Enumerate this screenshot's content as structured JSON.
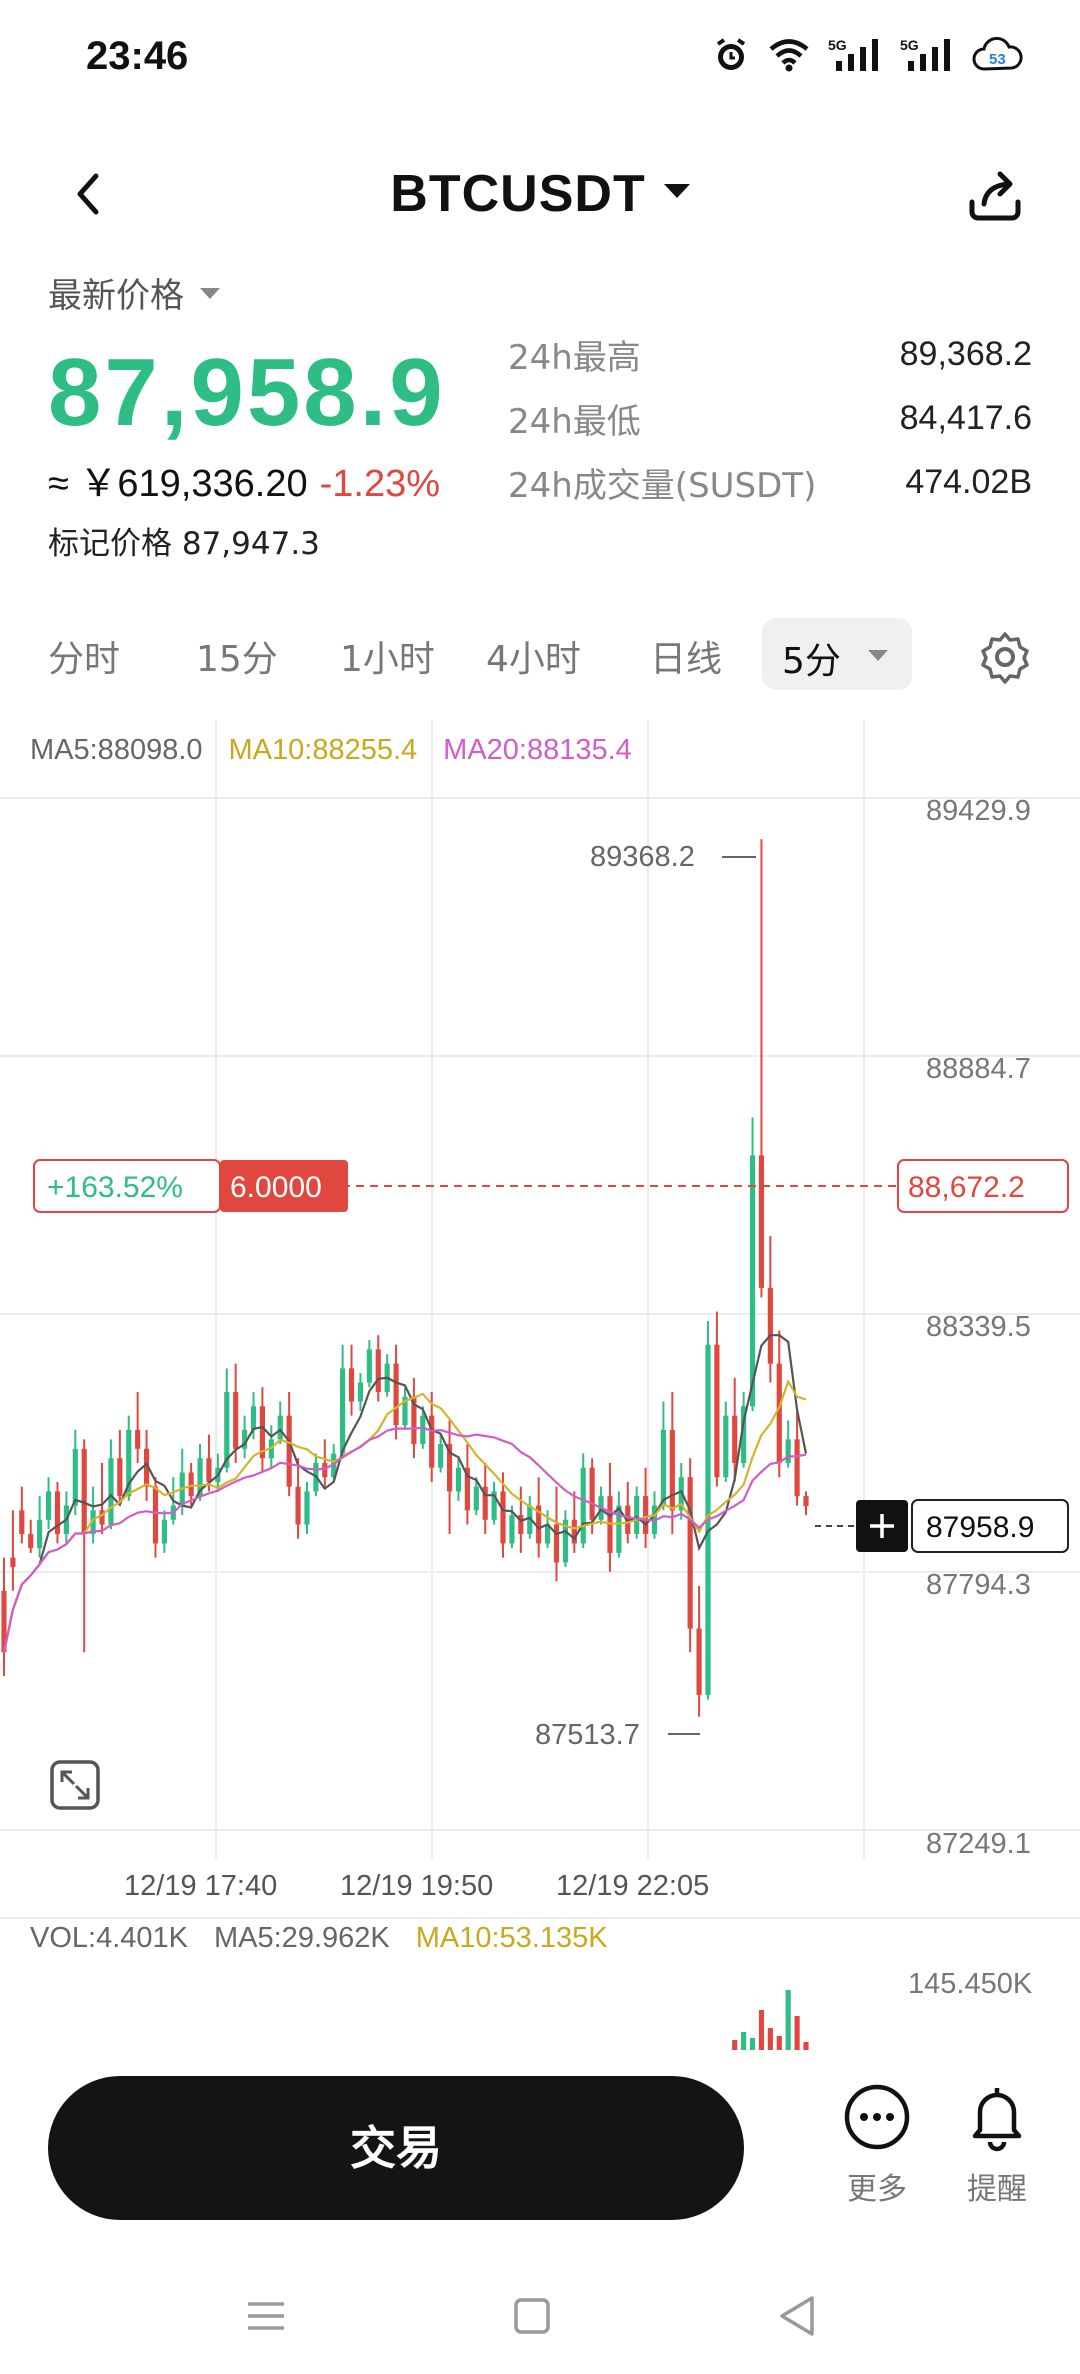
{
  "status_bar": {
    "time": "23:46",
    "icons": [
      "alarm-icon",
      "wifi-icon",
      "5g-signal-icon",
      "5g-signal-icon",
      "cloud-icon"
    ],
    "net_label_1": "5G",
    "net_label_2": "5G",
    "cloud_badge": "53"
  },
  "header": {
    "pair": "BTCUSDT"
  },
  "ticker": {
    "price_label": "最新价格",
    "last_price": "87,958.9",
    "cny_value": "≈ ￥619,336.20",
    "change_pct": "-1.23%",
    "mark_price": "标记价格 87,947.3",
    "stats": [
      {
        "label": "24h最高",
        "value": "89,368.2"
      },
      {
        "label": "24h最低",
        "value": "84,417.6"
      },
      {
        "label": "24h成交量(SUSDT)",
        "value": "474.02B"
      }
    ]
  },
  "tabs": {
    "items": [
      "分时",
      "15分",
      "1小时",
      "4小时",
      "日线"
    ],
    "active": "5分"
  },
  "chart": {
    "ma5": "MA5:88098.0",
    "ma10": "MA10:88255.4",
    "ma20": "MA20:88135.4",
    "y_ticks": [
      "89429.9",
      "88884.7",
      "88339.5",
      "87794.3",
      "87249.1"
    ],
    "x_ticks": [
      "12/19 17:40",
      "12/19 19:50",
      "12/19 22:05"
    ],
    "high_marker": "89368.2",
    "low_marker": "87513.7",
    "position_pnl": "+163.52%",
    "position_size": "6.0000",
    "position_price": "88,672.2",
    "current_price_tag": "87958.9",
    "vol": "VOL:4.401K",
    "vol_ma5": "MA5:29.962K",
    "vol_ma10": "MA10:53.135K",
    "vol_max": "145.450K",
    "colors": {
      "up": "#2ebd85",
      "down": "#e0483f",
      "ma5": "#555555",
      "ma10": "#d4b52b",
      "ma20": "#d25cc8",
      "grid": "#ececec"
    }
  },
  "chart_data": {
    "type": "candlestick",
    "timeframe": "5分",
    "x_labels": [
      "12/19 17:40",
      "12/19 19:50",
      "12/19 22:05"
    ],
    "ylim": [
      87249.1,
      89429.9
    ],
    "y_ticks": [
      89429.9,
      88884.7,
      88339.5,
      87794.3,
      87249.1
    ],
    "high": 89368.2,
    "low": 87513.7,
    "last": 87958.9,
    "position_line": 88672.2,
    "candles": [
      [
        87780,
        87850,
        87650,
        87600
      ],
      [
        87850,
        87950,
        87830,
        87780
      ],
      [
        87950,
        88000,
        87900,
        87880
      ],
      [
        87900,
        87930,
        87870,
        87860
      ],
      [
        87870,
        87980,
        87930,
        87850
      ],
      [
        87930,
        88020,
        87990,
        87910
      ],
      [
        87990,
        88010,
        87900,
        87880
      ],
      [
        87900,
        87990,
        87960,
        87880
      ],
      [
        87960,
        88120,
        88080,
        87940
      ],
      [
        88080,
        88100,
        87900,
        87650
      ],
      [
        87900,
        88000,
        87950,
        87880
      ],
      [
        87950,
        88050,
        87920,
        87900
      ],
      [
        87920,
        88100,
        88060,
        87910
      ],
      [
        88060,
        88120,
        87980,
        87960
      ],
      [
        87980,
        88150,
        88120,
        87970
      ],
      [
        88120,
        88200,
        88080,
        88050
      ],
      [
        88080,
        88120,
        88000,
        87970
      ],
      [
        88000,
        88020,
        87880,
        87850
      ],
      [
        87880,
        87950,
        87930,
        87860
      ],
      [
        87930,
        88020,
        87960,
        87920
      ],
      [
        87960,
        88080,
        88030,
        87940
      ],
      [
        88030,
        88050,
        87980,
        87960
      ],
      [
        87980,
        88090,
        88060,
        87970
      ],
      [
        88060,
        88110,
        88010,
        87990
      ],
      [
        88010,
        88070,
        88040,
        87990
      ],
      [
        88040,
        88250,
        88200,
        88030
      ],
      [
        88200,
        88260,
        88080,
        88050
      ],
      [
        88080,
        88150,
        88120,
        88060
      ],
      [
        88120,
        88200,
        88170,
        88100
      ],
      [
        88170,
        88210,
        88060,
        88030
      ],
      [
        88060,
        88130,
        88100,
        88040
      ],
      [
        88100,
        88180,
        88150,
        88090
      ],
      [
        88150,
        88200,
        88000,
        87980
      ],
      [
        88000,
        88060,
        87920,
        87890
      ],
      [
        87920,
        88010,
        87990,
        87900
      ],
      [
        87990,
        88070,
        88050,
        87980
      ],
      [
        88050,
        88100,
        88020,
        88000
      ],
      [
        88020,
        88090,
        88070,
        88010
      ],
      [
        88070,
        88300,
        88250,
        88060
      ],
      [
        88250,
        88300,
        88180,
        88150
      ],
      [
        88180,
        88240,
        88220,
        88160
      ],
      [
        88220,
        88310,
        88290,
        88210
      ],
      [
        88290,
        88320,
        88200,
        88180
      ],
      [
        88200,
        88280,
        88260,
        88190
      ],
      [
        88260,
        88300,
        88130,
        88100
      ],
      [
        88130,
        88210,
        88190,
        88120
      ],
      [
        88190,
        88230,
        88090,
        88060
      ],
      [
        88090,
        88170,
        88150,
        88080
      ],
      [
        88150,
        88200,
        88040,
        88010
      ],
      [
        88040,
        88110,
        88090,
        88030
      ],
      [
        88090,
        88140,
        87990,
        87900
      ],
      [
        87990,
        88060,
        88040,
        87970
      ],
      [
        88040,
        88090,
        87950,
        87920
      ],
      [
        87950,
        88020,
        88000,
        87940
      ],
      [
        88000,
        88050,
        87930,
        87900
      ],
      [
        87930,
        88010,
        87990,
        87920
      ],
      [
        87990,
        88030,
        87880,
        87850
      ],
      [
        87880,
        87960,
        87940,
        87870
      ],
      [
        87940,
        88000,
        87900,
        87860
      ],
      [
        87900,
        87980,
        87960,
        87890
      ],
      [
        87960,
        88020,
        87880,
        87850
      ],
      [
        87880,
        87950,
        87920,
        87870
      ],
      [
        87920,
        88000,
        87840,
        87800
      ],
      [
        87840,
        87950,
        87930,
        87830
      ],
      [
        87930,
        87990,
        87880,
        87860
      ],
      [
        87880,
        88070,
        88040,
        87870
      ],
      [
        88040,
        88060,
        87930,
        87900
      ],
      [
        87930,
        88000,
        87980,
        87920
      ],
      [
        87980,
        88050,
        87860,
        87820
      ],
      [
        87860,
        87990,
        87960,
        87850
      ],
      [
        87960,
        88010,
        87900,
        87880
      ],
      [
        87900,
        88000,
        87980,
        87890
      ],
      [
        87980,
        88040,
        87900,
        87870
      ],
      [
        87900,
        87990,
        87960,
        87890
      ],
      [
        87960,
        88180,
        88120,
        87950
      ],
      [
        88120,
        88200,
        87950,
        87900
      ],
      [
        87950,
        88050,
        88020,
        87930
      ],
      [
        88020,
        88060,
        87700,
        87650
      ],
      [
        87700,
        87790,
        87560,
        87513.7
      ],
      [
        87560,
        88350,
        88300,
        87550
      ],
      [
        88300,
        88370,
        88020,
        88000
      ],
      [
        88020,
        88180,
        88150,
        88010
      ],
      [
        88150,
        88230,
        88050,
        88010
      ],
      [
        88050,
        88200,
        88170,
        88040
      ],
      [
        88170,
        88780,
        88700,
        88160
      ],
      [
        88700,
        89368.2,
        88420,
        88400
      ],
      [
        88420,
        88530,
        88260,
        88220
      ],
      [
        88260,
        88330,
        88050,
        88020
      ],
      [
        88050,
        88140,
        88100,
        88040
      ],
      [
        88100,
        88160,
        87980,
        87960
      ],
      [
        87980,
        87990,
        87958.9,
        87940
      ]
    ],
    "candle_format": [
      "open",
      "high",
      "close",
      "low"
    ]
  },
  "trade_bar": {
    "trade_label": "交易",
    "more_label": "更多",
    "alert_label": "提醒"
  }
}
